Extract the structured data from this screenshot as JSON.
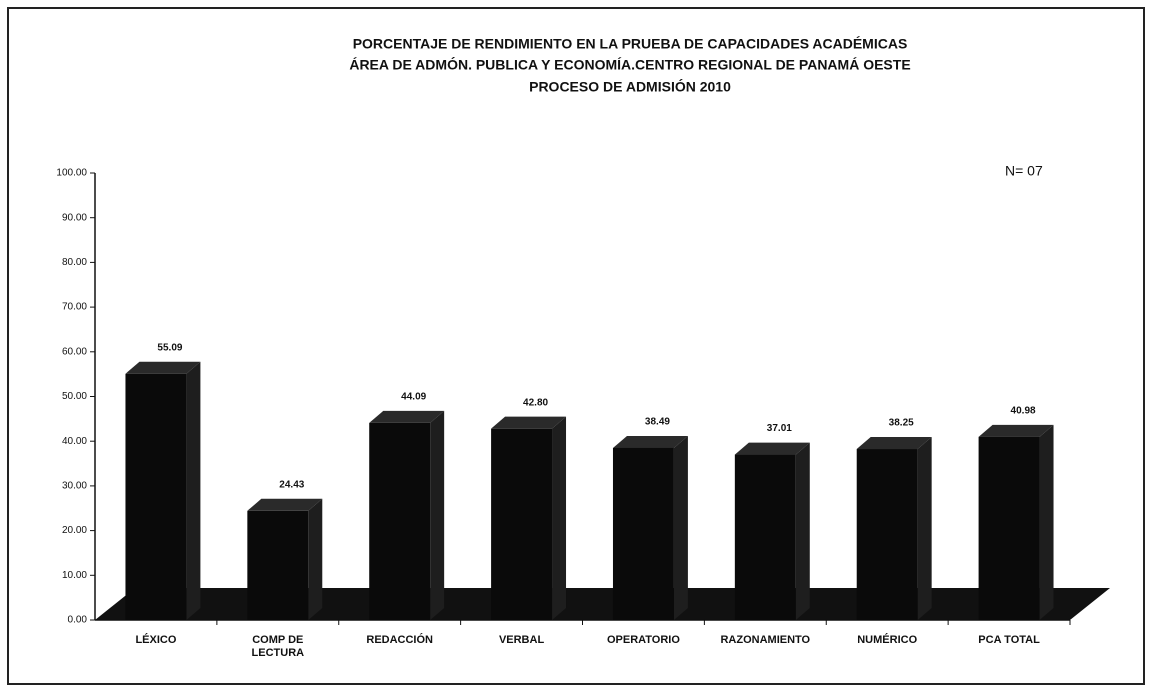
{
  "chart_data": {
    "type": "bar",
    "title": [
      "PORCENTAJE DE RENDIMIENTO EN LA PRUEBA DE CAPACIDADES ACADÉMICAS",
      "ÁREA DE ADMÓN. PUBLICA Y ECONOMÍA.CENTRO REGIONAL DE PANAMÁ OESTE",
      "PROCESO DE ADMISIÓN 2010"
    ],
    "annotation": "N= 07",
    "categories": [
      "LÉXICO",
      "COMP DE LECTURA",
      "REDACCIÓN",
      "VERBAL",
      "OPERATORIO",
      "RAZONAMIENTO",
      "NUMÉRICO",
      "PCA TOTAL"
    ],
    "values": [
      55.09,
      24.43,
      44.09,
      42.8,
      38.49,
      37.01,
      38.25,
      40.98
    ],
    "value_labels": [
      "55.09",
      "24.43",
      "44.09",
      "42.80",
      "38.49",
      "37.01",
      "38.25",
      "40.98"
    ],
    "color": "#0a0a0a",
    "ylim": [
      0,
      100
    ],
    "yticks": [
      {
        "value": 0,
        "label": "0.00"
      },
      {
        "value": 10,
        "label": "10.00"
      },
      {
        "value": 20,
        "label": "20.00"
      },
      {
        "value": 30,
        "label": "30.00"
      },
      {
        "value": 40,
        "label": "40.00"
      },
      {
        "value": 50,
        "label": "50.00"
      },
      {
        "value": 60,
        "label": "60.00"
      },
      {
        "value": 70,
        "label": "70.00"
      },
      {
        "value": 80,
        "label": "80.00"
      },
      {
        "value": 90,
        "label": "90.00"
      },
      {
        "value": 100,
        "label": "100.00"
      }
    ]
  }
}
